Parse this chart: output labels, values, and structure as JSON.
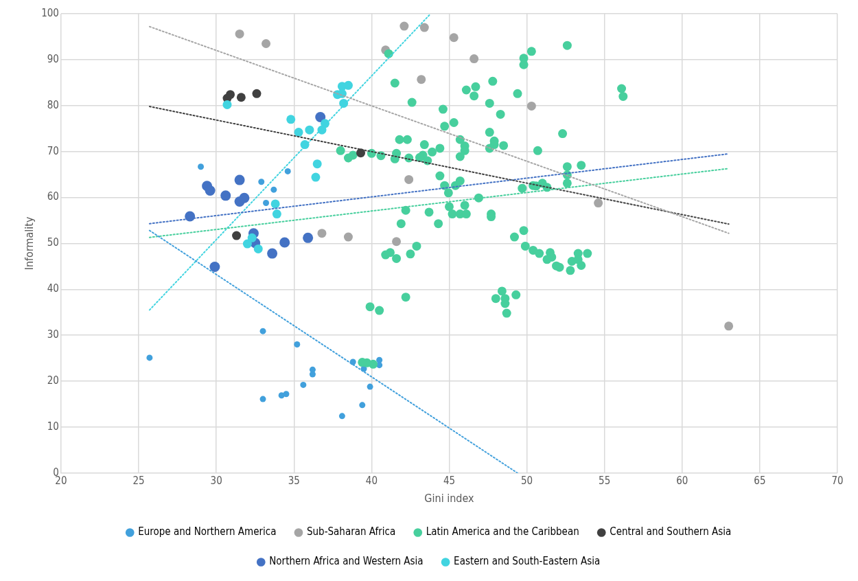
{
  "chart_data": {
    "type": "scatter",
    "xlabel": "Gini index",
    "ylabel": "Informality",
    "xlim": [
      20,
      70
    ],
    "xticks": [
      20,
      25,
      30,
      35,
      40,
      45,
      50,
      55,
      60,
      65,
      70
    ],
    "ylim": [
      0,
      100
    ],
    "yticks": [
      0,
      10,
      20,
      30,
      40,
      50,
      60,
      70,
      80,
      90,
      100
    ],
    "grid": true,
    "legend": "bottom",
    "marker": "circle",
    "series": [
      {
        "name": "Europe and Northern America",
        "color": "#41a0dc",
        "x": [
          25.7,
          29.0,
          32.9,
          33.7,
          33.2,
          34.6,
          33.0,
          35.2,
          36.2,
          36.2,
          35.6,
          33.0,
          34.2,
          34.5,
          38.1,
          39.4,
          39.9,
          38.8,
          39.5,
          40.5,
          40.5
        ],
        "values": [
          25.1,
          66.7,
          63.4,
          61.7,
          58.8,
          65.7,
          30.9,
          28.0,
          22.5,
          21.5,
          19.2,
          16.1,
          16.9,
          17.2,
          12.4,
          14.8,
          18.8,
          24.2,
          22.7,
          24.6,
          23.5
        ]
      },
      {
        "name": "Sub-Saharan Africa",
        "color": "#a5a5a5",
        "x": [
          31.5,
          33.2,
          42.1,
          43.4,
          45.3,
          46.6,
          40.9,
          43.2,
          50.3,
          54.6,
          63.0,
          42.4,
          36.8,
          38.5,
          41.6
        ],
        "values": [
          95.6,
          93.5,
          97.3,
          97.0,
          94.8,
          90.2,
          92.1,
          85.7,
          79.9,
          58.8,
          32.0,
          63.9,
          52.2,
          51.4,
          50.4
        ]
      },
      {
        "name": "Latin America and the Caribbean",
        "color": "#47cf9d",
        "x": [
          41.1,
          41.5,
          42.6,
          44.6,
          45.3,
          44.7,
          41.8,
          42.3,
          43.4,
          44.4,
          43.9,
          43.3,
          43.1,
          43.6,
          41.6,
          41.5,
          42.4,
          40.6,
          40.0,
          38.8,
          38.5,
          38.0,
          45.7,
          46.0,
          46.0,
          45.7,
          47.6,
          47.9,
          47.9,
          47.6,
          48.5,
          46.1,
          46.7,
          46.6,
          47.8,
          47.6,
          48.3,
          49.4,
          49.8,
          49.8,
          50.3,
          52.6,
          56.1,
          56.2,
          52.3,
          50.7,
          52.6,
          53.5,
          52.6,
          52.6,
          51.0,
          51.3,
          50.4,
          50.6,
          49.7,
          44.4,
          44.7,
          44.95,
          45.4,
          45.7,
          46.9,
          45.0,
          46.0,
          45.2,
          45.7,
          46.1,
          47.7,
          47.7,
          42.2,
          43.7,
          44.3,
          41.9,
          42.9,
          42.5,
          40.9,
          41.2,
          41.6,
          49.2,
          49.8,
          49.9,
          50.4,
          50.8,
          51.5,
          51.6,
          51.3,
          51.9,
          52.1,
          52.8,
          52.9,
          53.3,
          53.9,
          53.5,
          53.3,
          48.4,
          48.0,
          48.6,
          48.6,
          48.7,
          49.3,
          42.2,
          39.9,
          40.5,
          39.7,
          40.1,
          39.4
        ],
        "values": [
          91.3,
          84.9,
          80.7,
          79.2,
          76.3,
          75.5,
          72.6,
          72.6,
          71.5,
          70.7,
          69.9,
          69.2,
          68.7,
          68.0,
          69.6,
          68.4,
          68.6,
          69.1,
          69.6,
          69.2,
          68.6,
          70.2,
          72.6,
          71.2,
          70.2,
          68.9,
          74.2,
          72.3,
          71.5,
          70.7,
          71.3,
          83.4,
          84.1,
          82.1,
          85.3,
          80.5,
          78.1,
          82.6,
          90.3,
          88.9,
          91.8,
          93.1,
          83.7,
          82.0,
          73.9,
          70.2,
          66.7,
          67.0,
          64.9,
          63.1,
          63.1,
          62.2,
          62.6,
          62.5,
          62.0,
          64.7,
          62.6,
          61.0,
          62.6,
          63.6,
          59.9,
          58.0,
          58.3,
          56.4,
          56.4,
          56.4,
          56.4,
          55.8,
          57.2,
          56.8,
          54.3,
          54.3,
          49.4,
          47.7,
          47.5,
          48.0,
          46.7,
          51.4,
          52.8,
          49.4,
          48.5,
          47.8,
          48.0,
          47.0,
          46.5,
          45.1,
          44.8,
          44.1,
          46.1,
          47.8,
          47.8,
          45.2,
          46.5,
          39.6,
          38.0,
          38.0,
          36.9,
          34.8,
          38.8,
          38.3,
          36.2,
          35.4,
          24.0,
          23.7,
          24.1
        ]
      },
      {
        "name": "Central and Southern Asia",
        "color": "#404040",
        "x": [
          30.7,
          30.9,
          31.6,
          32.6,
          39.3,
          31.3
        ],
        "values": [
          81.6,
          82.4,
          81.8,
          82.6,
          69.7,
          51.7
        ]
      },
      {
        "name": "Northern Africa and Western Asia",
        "color": "#4472c4",
        "x": [
          36.7,
          31.5,
          29.4,
          29.6,
          30.6,
          31.8,
          31.5,
          28.3,
          32.4,
          32.5,
          33.6,
          34.4,
          35.9,
          29.9
        ],
        "values": [
          77.5,
          63.8,
          62.5,
          61.5,
          60.4,
          59.9,
          59.1,
          55.9,
          52.2,
          50.1,
          47.8,
          50.2,
          51.2,
          44.9
        ]
      },
      {
        "name": "Eastern and South-Eastern Asia",
        "color": "#41d4e0",
        "x": [
          30.7,
          38.1,
          38.5,
          37.8,
          38.1,
          38.2,
          34.8,
          35.3,
          36.0,
          35.7,
          36.8,
          37.0,
          36.5,
          36.4,
          33.8,
          33.9,
          32.0,
          32.3,
          32.7
        ],
        "values": [
          80.2,
          84.2,
          84.4,
          82.4,
          82.6,
          80.5,
          77.0,
          74.2,
          74.7,
          71.5,
          74.7,
          76.1,
          67.3,
          64.4,
          58.6,
          56.4,
          49.9,
          51.2,
          48.8
        ]
      },
      {
        "type": "line",
        "color": "#41a0dc",
        "line_style": "dotted",
        "marker": "none",
        "x": [
          25.7,
          49.4
        ],
        "values": [
          52.8,
          0
        ]
      },
      {
        "type": "line",
        "color": "#a5a5a5",
        "line_style": "dotted",
        "marker": "none",
        "x": [
          25.7,
          63.0
        ],
        "values": [
          97.2,
          52.2
        ]
      },
      {
        "type": "line",
        "color": "#47cf9d",
        "line_style": "dotted",
        "marker": "none",
        "x": [
          25.7,
          63.0
        ],
        "values": [
          51.3,
          66.3
        ]
      },
      {
        "type": "line",
        "color": "#404040",
        "line_style": "dotted",
        "marker": "none",
        "x": [
          25.7,
          63.0
        ],
        "values": [
          79.8,
          54.2
        ]
      },
      {
        "type": "line",
        "color": "#4472c4",
        "line_style": "dotted",
        "marker": "none",
        "x": [
          25.7,
          63.0
        ],
        "values": [
          54.3,
          69.5
        ]
      },
      {
        "type": "line",
        "color": "#41d4e0",
        "line_style": "dotted",
        "marker": "none",
        "x": [
          25.7,
          43.8
        ],
        "values": [
          35.5,
          100
        ]
      }
    ]
  }
}
